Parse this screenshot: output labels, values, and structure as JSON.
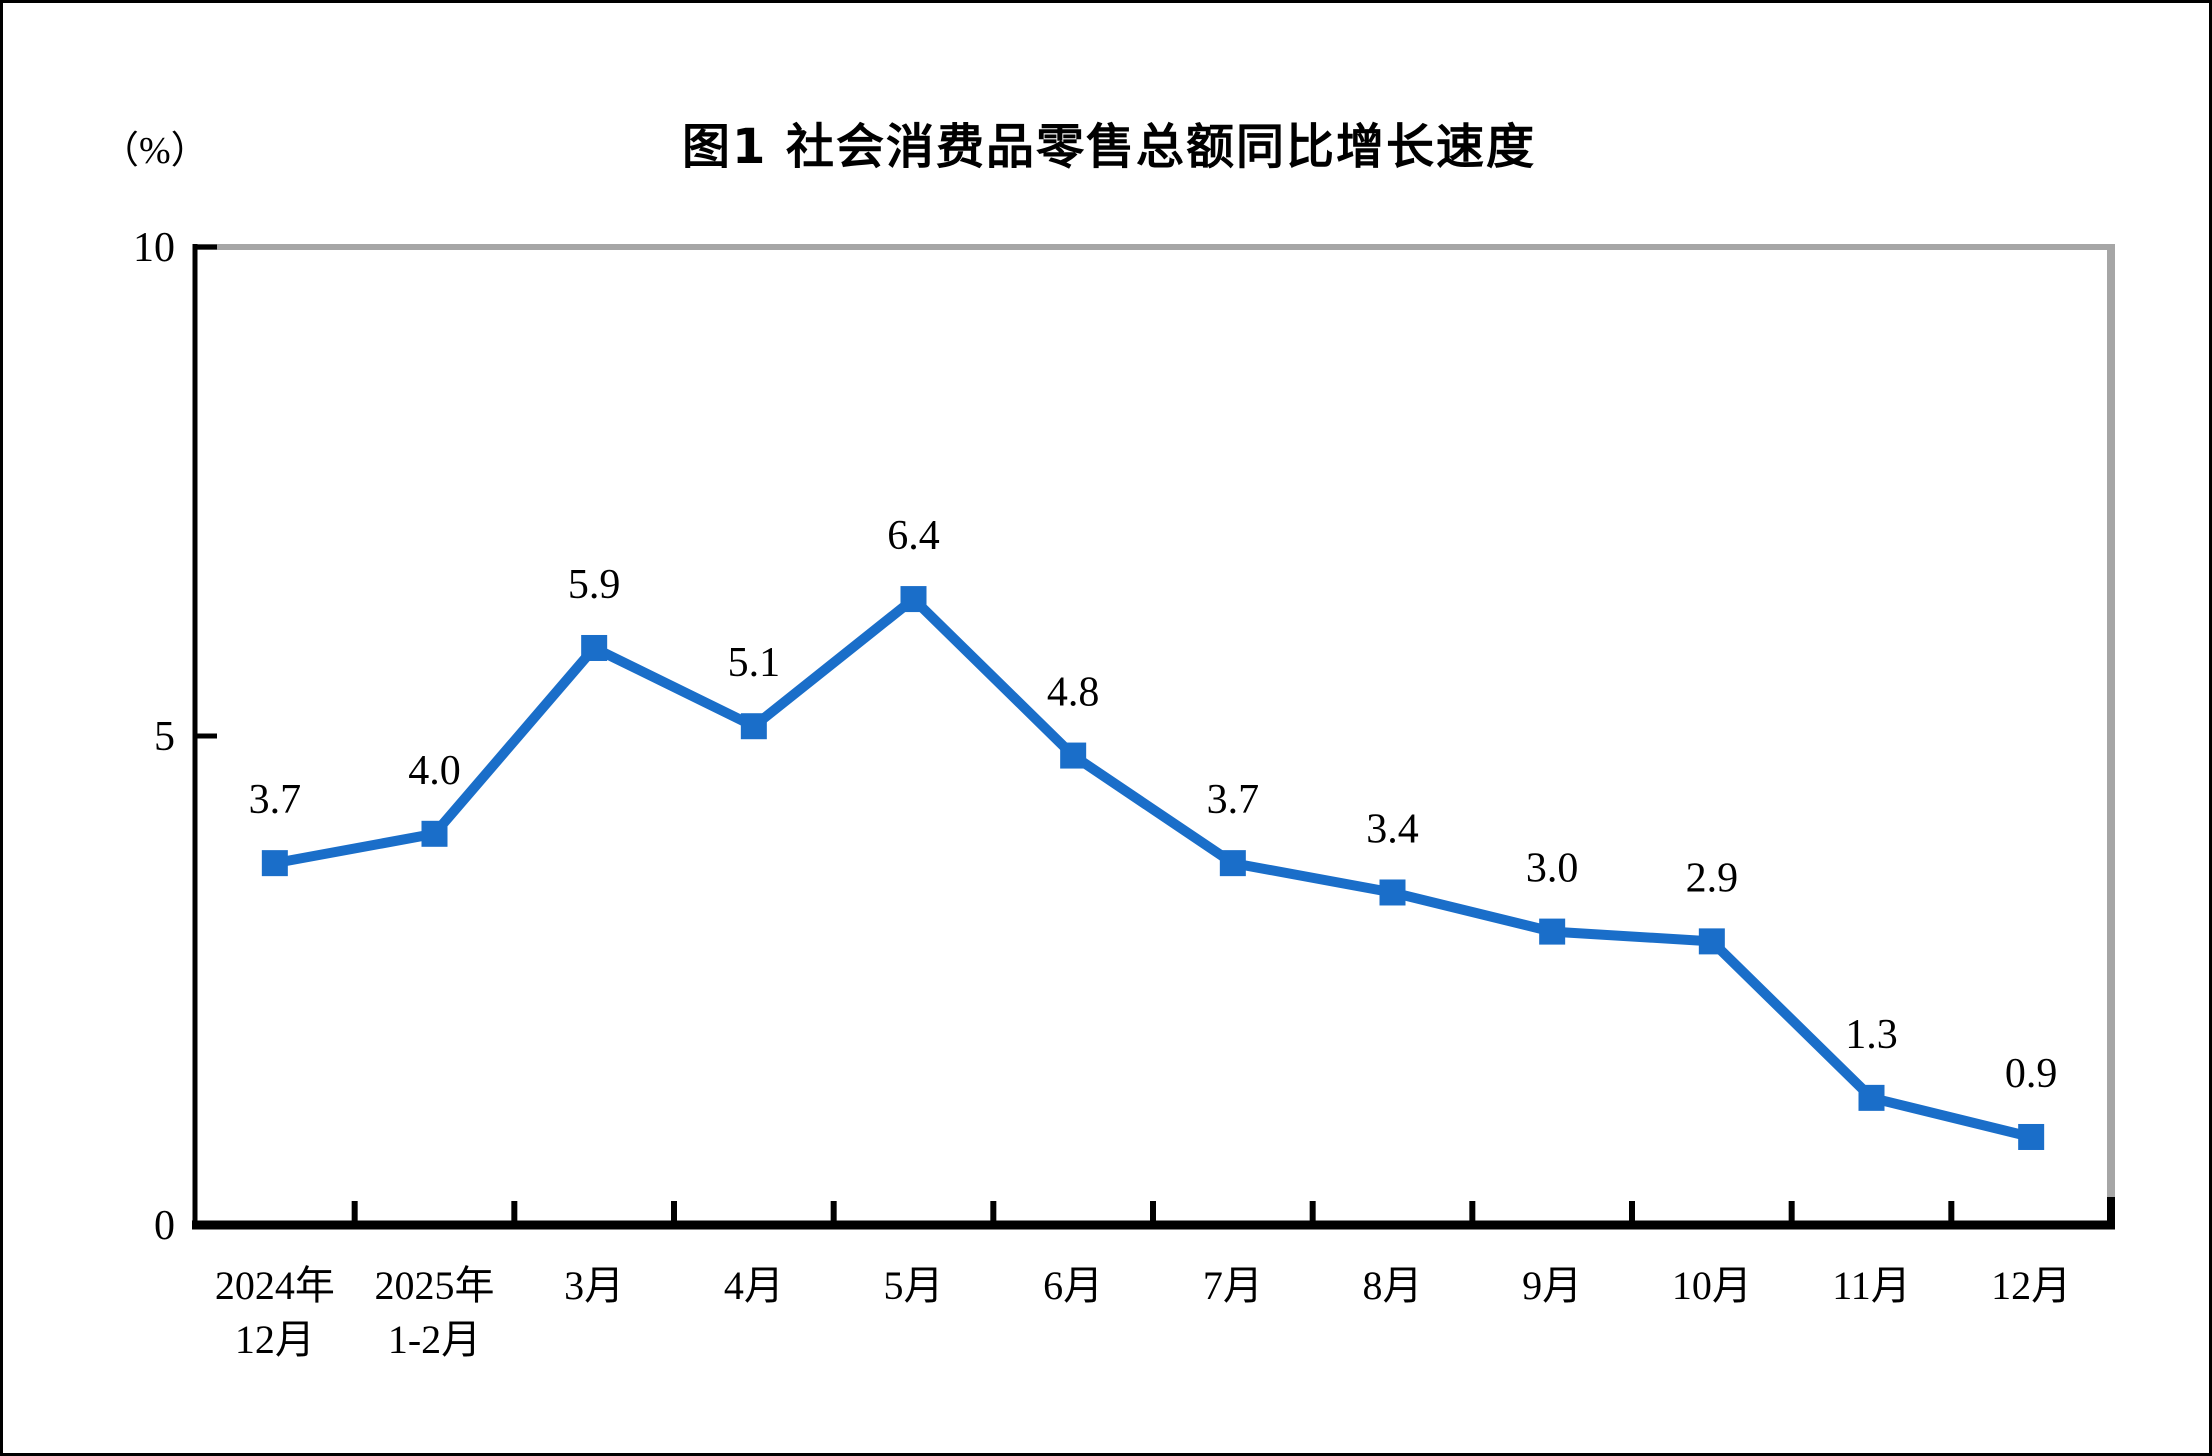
{
  "title": "图1 社会消费品零售总额同比增长速度",
  "chart_data": {
    "type": "line",
    "title": "图1 社会消费品零售总额同比增长速度",
    "ylabel_unit": "（%）",
    "categories": [
      "2024年\n12月",
      "2025年\n1-2月",
      "3月",
      "4月",
      "5月",
      "6月",
      "7月",
      "8月",
      "9月",
      "10月",
      "11月",
      "12月"
    ],
    "values": [
      3.7,
      4.0,
      5.9,
      5.1,
      6.4,
      4.8,
      3.7,
      3.4,
      3.0,
      2.9,
      1.3,
      0.9
    ],
    "data_labels": [
      "3.7",
      "4.0",
      "5.9",
      "5.1",
      "6.4",
      "4.8",
      "3.7",
      "3.4",
      "3.0",
      "2.9",
      "1.3",
      "0.9"
    ],
    "ylim": [
      0,
      10
    ],
    "yticks": [
      0,
      5,
      10
    ],
    "grid": false,
    "legend": "none",
    "marker": "square",
    "line_color": "#1A6EC9",
    "axis_color": "#000000",
    "plot_border_color": "#A6A6A6",
    "label_color": "#000000"
  }
}
